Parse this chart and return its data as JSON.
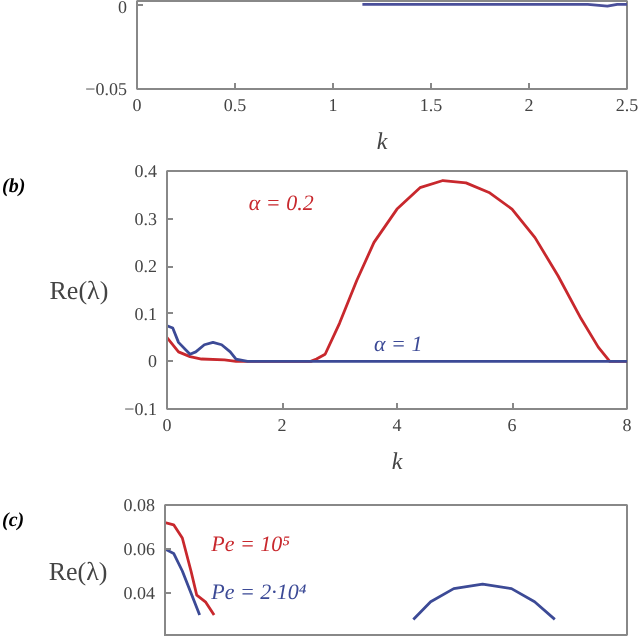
{
  "chart_data": [
    {
      "type": "line",
      "xlabel": "k",
      "xlim": [
        0,
        2.5
      ],
      "xticks": [
        0,
        0.5,
        1,
        1.5,
        2,
        2.5
      ],
      "ylim": [
        -0.05,
        0.002
      ],
      "yticks": [
        -0.05,
        0
      ],
      "series": [
        {
          "color": "#4a4f9a",
          "x": [
            1.15,
            1.3,
            1.5,
            1.7,
            1.9,
            2.1,
            2.3,
            2.4,
            2.45,
            2.5
          ],
          "values": [
            0,
            0,
            0,
            0,
            0,
            0,
            0,
            -0.001,
            0,
            0
          ]
        }
      ]
    },
    {
      "type": "line",
      "annotations": [
        "(b)"
      ],
      "xlabel": "k",
      "ylabel": "Re(λ)",
      "xlim": [
        0,
        8
      ],
      "xticks": [
        0,
        2,
        4,
        6,
        8
      ],
      "ylim": [
        -0.1,
        0.4
      ],
      "yticks": [
        -0.1,
        0,
        0.1,
        0.2,
        0.3,
        0.4
      ],
      "series": [
        {
          "name": "α = 0.2",
          "color": "#c8282d",
          "x": [
            0,
            0.2,
            0.4,
            0.6,
            1.0,
            1.2,
            2.5,
            2.6,
            2.75,
            3.0,
            3.3,
            3.6,
            4.0,
            4.4,
            4.8,
            5.2,
            5.6,
            6.0,
            6.4,
            6.8,
            7.2,
            7.5,
            7.7,
            8
          ],
          "values": [
            0.05,
            0.02,
            0.01,
            0.005,
            0.003,
            0,
            0,
            0.005,
            0.015,
            0.08,
            0.17,
            0.25,
            0.32,
            0.365,
            0.38,
            0.375,
            0.355,
            0.32,
            0.26,
            0.18,
            0.09,
            0.03,
            0,
            0
          ]
        },
        {
          "name": "α = 1",
          "color": "#3c4a96",
          "x": [
            0,
            0.1,
            0.2,
            0.4,
            0.5,
            0.65,
            0.8,
            0.95,
            1.1,
            1.2,
            1.4,
            8
          ],
          "values": [
            0.075,
            0.07,
            0.04,
            0.015,
            0.02,
            0.035,
            0.04,
            0.035,
            0.02,
            0.005,
            0,
            0
          ]
        }
      ]
    },
    {
      "type": "line",
      "annotations": [
        "(c)"
      ],
      "ylabel": "Re(λ)",
      "xlim": [
        0,
        8
      ],
      "ylim": [
        0.02,
        0.08
      ],
      "yticks": [
        0.04,
        0.06,
        0.08
      ],
      "tick_labels": "y",
      "series": [
        {
          "name": "Pe = 10⁵",
          "color": "#c8282d",
          "x": [
            0,
            0.15,
            0.3,
            0.45,
            0.55,
            0.7,
            0.85
          ],
          "values": [
            0.072,
            0.071,
            0.065,
            0.05,
            0.039,
            0.036,
            0.03
          ]
        },
        {
          "name": "Pe = 2·10⁴",
          "color": "#3c4a96",
          "x": [
            0,
            0.15,
            0.3,
            0.45,
            0.6,
            null,
            4.3,
            4.6,
            5.0,
            5.5,
            6.0,
            6.4,
            6.75
          ],
          "values": [
            0.06,
            0.058,
            0.05,
            0.04,
            0.03,
            null,
            0.028,
            0.036,
            0.042,
            0.044,
            0.042,
            0.036,
            0.028
          ]
        }
      ]
    }
  ]
}
